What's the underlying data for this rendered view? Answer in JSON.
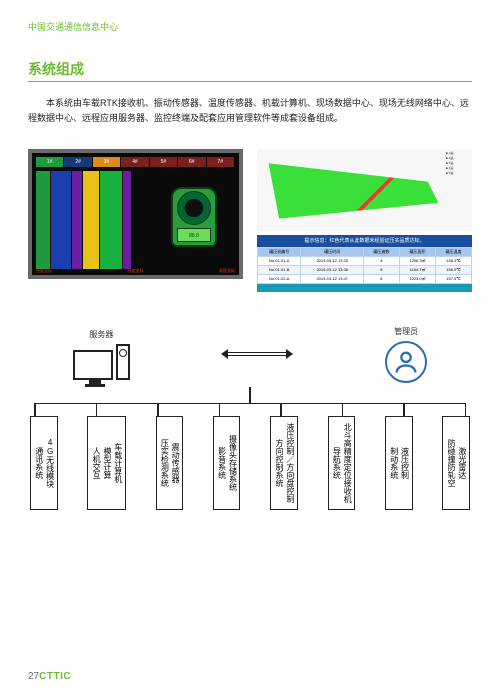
{
  "header": {
    "org": "中国交通通信信息中心"
  },
  "section": {
    "title": "系统组成",
    "body": "本系统由车载RTK接收机、振动传感器、温度传感器、机载计算机、现场数据中心、现场无线网络中心、远程数据中心、远程应用服务器、监控终端及配套应用管理软件等成套设备组成。"
  },
  "leftPanel": {
    "tabs": [
      {
        "label": "1#",
        "color": "#1e9b3e",
        "text": "#fff"
      },
      {
        "label": "2#",
        "color": "#153a78",
        "text": "#fff"
      },
      {
        "label": "3#",
        "color": "#e08a1a",
        "text": "#fff"
      },
      {
        "label": "4#",
        "color": "#7a2020",
        "text": "#fff"
      },
      {
        "label": "5#",
        "color": "#7a2020",
        "text": "#fff"
      },
      {
        "label": "6#",
        "color": "#7a2020",
        "text": "#fff"
      },
      {
        "label": "7#",
        "color": "#7a2020",
        "text": "#fff"
      }
    ],
    "lanes": [
      {
        "w": 14,
        "color": "#1e9b3e"
      },
      {
        "w": 20,
        "color": "#1c3fb0"
      },
      {
        "w": 10,
        "color": "#6a1fa0"
      },
      {
        "w": 16,
        "color": "#e6c21a"
      },
      {
        "w": 22,
        "color": "#18b03e"
      },
      {
        "w": 8,
        "color": "#6a1fa0"
      }
    ],
    "lcd": "88.8",
    "footL": "经度坐标",
    "footM": "纬度坐标",
    "footR": "高程坐标"
  },
  "rightPanel": {
    "titlebar": "提示信息：红色代表从此数据未经验证压实品质达标。",
    "rows": [
      [
        "碾压机编号",
        "碾压时间",
        "碾压遍数",
        "碾压面积",
        "碾压温度"
      ],
      [
        "No.01-01-A",
        "2019-03-12 13:25",
        "8",
        "1256.3㎡",
        "158.3℃"
      ],
      [
        "No.01-01-B",
        "2019-03-12 13:36",
        "8",
        "1184.7㎡",
        "156.9℃"
      ],
      [
        "No.01-02-A",
        "2019-03-12 13:47",
        "8",
        "1223.0㎡",
        "157.5℃"
      ]
    ]
  },
  "diagram": {
    "serverLabel": "服务器",
    "adminLabel": "管理员",
    "boxes": [
      {
        "cols": [
          "通讯系统",
          "4G无线模块"
        ]
      },
      {
        "cols": [
          "人机交互",
          "模型计算",
          "车载计算机"
        ]
      },
      {
        "cols": [
          "压实检测系统",
          "震动传感器"
        ]
      },
      {
        "cols": [
          "影音系统",
          "摄像头存储系统"
        ]
      },
      {
        "cols": [
          "方向控制系统",
          "液压控制／方向盘控制"
        ]
      },
      {
        "cols": [
          "导航系统",
          "北斗高精度定位接收机"
        ]
      },
      {
        "cols": [
          "制动系统",
          "液压控制"
        ]
      },
      {
        "cols": [
          "防碰撞防轧空",
          "激光雷达"
        ]
      }
    ]
  },
  "footer": {
    "page": "27",
    "brand": "CTTIC"
  }
}
